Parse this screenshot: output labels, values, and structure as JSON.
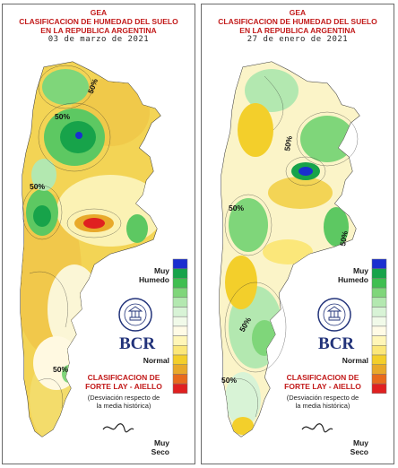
{
  "panels": [
    {
      "org": "GEA",
      "title1": "CLASIFICACION DE HUMEDAD DEL SUELO",
      "title2": "EN LA REPUBLICA ARGENTINA",
      "date": "03 de marzo de 2021",
      "contour_labels": [
        "50%",
        "50%",
        "50%",
        "50%"
      ]
    },
    {
      "org": "GEA",
      "title1": "CLASIFICACION DE HUMEDAD DEL SUELO",
      "title2": "EN LA REPUBLICA ARGENTINA",
      "date": "27 de enero de 2021",
      "contour_labels": [
        "50%",
        "50%",
        "50%",
        "50%",
        "50%"
      ]
    }
  ],
  "legend": {
    "muy_humedo_1": "Muy",
    "muy_humedo_2": "Humedo",
    "normal": "Normal",
    "muy_seco_1": "Muy",
    "muy_seco_2": "Seco",
    "colors": [
      "#1a2fd0",
      "#17a34a",
      "#3fbf50",
      "#7fd67a",
      "#b3e8b0",
      "#d8f3d6",
      "#f1fae9",
      "#fffbe6",
      "#fff6b8",
      "#fbe77a",
      "#f3cf2b",
      "#e8a92a",
      "#e86a1c",
      "#e02020"
    ]
  },
  "logo": {
    "text": "BCR",
    "seal_text": "BOLSA DE COMERCIO DE ROSARIO"
  },
  "method": {
    "line1": "CLASIFICACION DE",
    "line2": "FORTE LAY - AIELLO",
    "note1": "(Desviación respecto de",
    "note2": "la media histórica)"
  },
  "signature": "JFH"
}
